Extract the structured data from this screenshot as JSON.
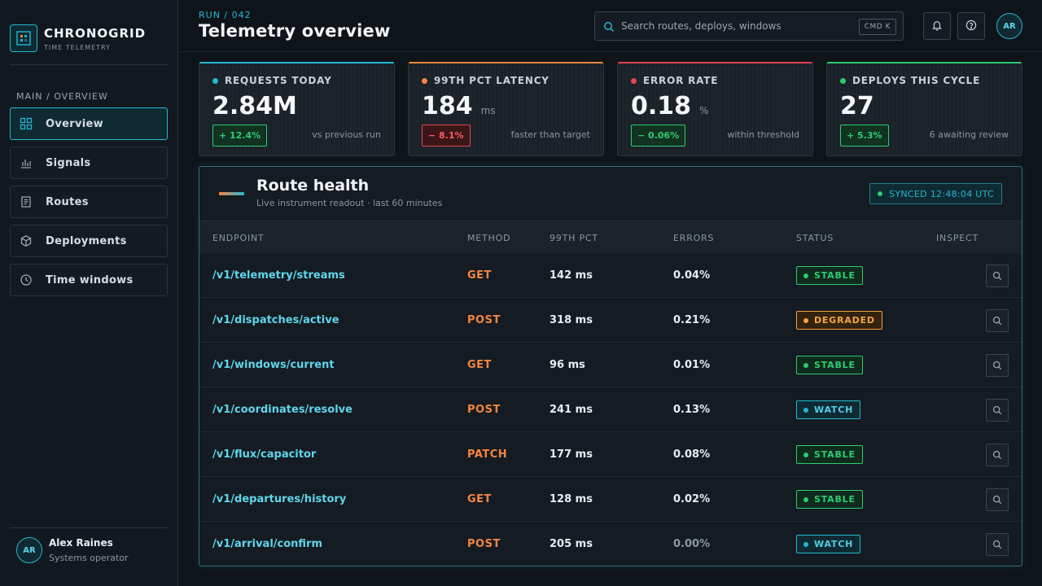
{
  "brand": {
    "name": "CHRONOGRID",
    "subtitle": "TIME TELEMETRY"
  },
  "nav": {
    "section": "MAIN / OVERVIEW",
    "items": [
      {
        "label": "Overview",
        "icon": "grid-icon",
        "active": true
      },
      {
        "label": "Signals",
        "icon": "bar-chart-icon",
        "active": false
      },
      {
        "label": "Routes",
        "icon": "document-icon",
        "active": false
      },
      {
        "label": "Deployments",
        "icon": "cube-icon",
        "active": false
      },
      {
        "label": "Time windows",
        "icon": "clock-icon",
        "active": false
      }
    ]
  },
  "user": {
    "initials": "AR",
    "name": "Alex Raines",
    "role": "Systems operator"
  },
  "header": {
    "breadcrumb": "RUN / 042",
    "title": "Telemetry overview",
    "search_placeholder": "Search routes, deploys, windows",
    "shortcut": "CMD K",
    "avatar_initials": "AR"
  },
  "stats": [
    {
      "label": "REQUESTS TODAY",
      "value": "2.84M",
      "unit": "",
      "delta": "+ 12.4%",
      "direction": "up",
      "note": "vs previous run",
      "color": "#22b8d1"
    },
    {
      "label": "99TH PCT LATENCY",
      "value": "184",
      "unit": "ms",
      "delta": "− 8.1%",
      "direction": "down",
      "note": "faster than target",
      "color": "#f5853f"
    },
    {
      "label": "ERROR RATE",
      "value": "0.18",
      "unit": "%",
      "delta": "− 0.06%",
      "direction": "up",
      "note": "within threshold",
      "color": "#e0474c"
    },
    {
      "label": "DEPLOYS THIS CYCLE",
      "value": "27",
      "unit": "",
      "delta": "+ 5.3%",
      "direction": "up",
      "note": "6 awaiting review",
      "color": "#2ecc71"
    }
  ],
  "panel": {
    "title": "Route health",
    "subtitle": "Live instrument readout · last 60 minutes",
    "sync": "SYNCED 12:48:04 UTC",
    "columns": [
      "ENDPOINT",
      "METHOD",
      "99TH PCT",
      "ERRORS",
      "STATUS",
      "INSPECT"
    ],
    "rows": [
      {
        "endpoint": "/v1/telemetry/streams",
        "method": "GET",
        "latency": "142 ms",
        "errors": "0.04%",
        "status": "STABLE"
      },
      {
        "endpoint": "/v1/dispatches/active",
        "method": "POST",
        "latency": "318 ms",
        "errors": "0.21%",
        "status": "DEGRADED"
      },
      {
        "endpoint": "/v1/windows/current",
        "method": "GET",
        "latency": "96 ms",
        "errors": "0.01%",
        "status": "STABLE"
      },
      {
        "endpoint": "/v1/coordinates/resolve",
        "method": "POST",
        "latency": "241 ms",
        "errors": "0.13%",
        "status": "WATCH"
      },
      {
        "endpoint": "/v1/flux/capacitor",
        "method": "PATCH",
        "latency": "177 ms",
        "errors": "0.08%",
        "status": "STABLE"
      },
      {
        "endpoint": "/v1/departures/history",
        "method": "GET",
        "latency": "128 ms",
        "errors": "0.02%",
        "status": "STABLE"
      },
      {
        "endpoint": "/v1/arrival/confirm",
        "method": "POST",
        "latency": "205 ms",
        "errors": "0.00%",
        "status": "WATCH"
      }
    ]
  }
}
